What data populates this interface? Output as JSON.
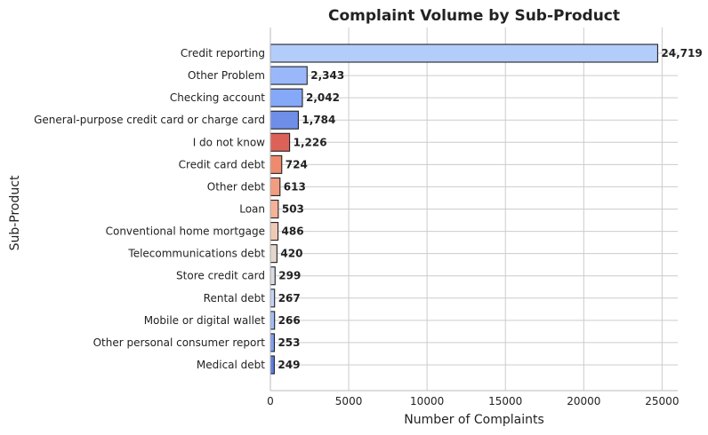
{
  "chart_data": {
    "type": "bar",
    "orientation": "horizontal",
    "title": "Complaint Volume by Sub-Product",
    "xlabel": "Number of Complaints",
    "ylabel": "Sub-Product",
    "xlim": [
      0,
      26000
    ],
    "xticks": [
      0,
      5000,
      10000,
      15000,
      20000,
      25000
    ],
    "xtick_labels": [
      "0",
      "5000",
      "10000",
      "15000",
      "20000",
      "25000"
    ],
    "grid": true,
    "categories": [
      "Credit reporting",
      "Other Problem",
      "Checking account",
      "General-purpose credit card or charge card",
      "I do not know",
      "Credit card debt",
      "Other debt",
      "Loan",
      "Conventional home mortgage",
      "Telecommunications debt",
      "Store credit card",
      "Rental debt",
      "Mobile or digital wallet",
      "Other personal consumer report",
      "Medical debt"
    ],
    "values": [
      24719,
      2343,
      2042,
      1784,
      1226,
      724,
      613,
      503,
      486,
      420,
      299,
      267,
      266,
      253,
      249
    ],
    "value_labels": [
      "24,719",
      "2,343",
      "2,042",
      "1,784",
      "1,226",
      "724",
      "613",
      "503",
      "486",
      "420",
      "299",
      "267",
      "266",
      "253",
      "249"
    ],
    "colors": [
      "#b3cdfb",
      "#9ab8f9",
      "#85a8f8",
      "#6f8ee8",
      "#dc6259",
      "#ee8a6e",
      "#f29c80",
      "#f5b299",
      "#f0c9b6",
      "#e4d6cc",
      "#d8dce3",
      "#c0d2f4",
      "#9fbdf5",
      "#7f9ef2",
      "#5b7ce6"
    ]
  }
}
